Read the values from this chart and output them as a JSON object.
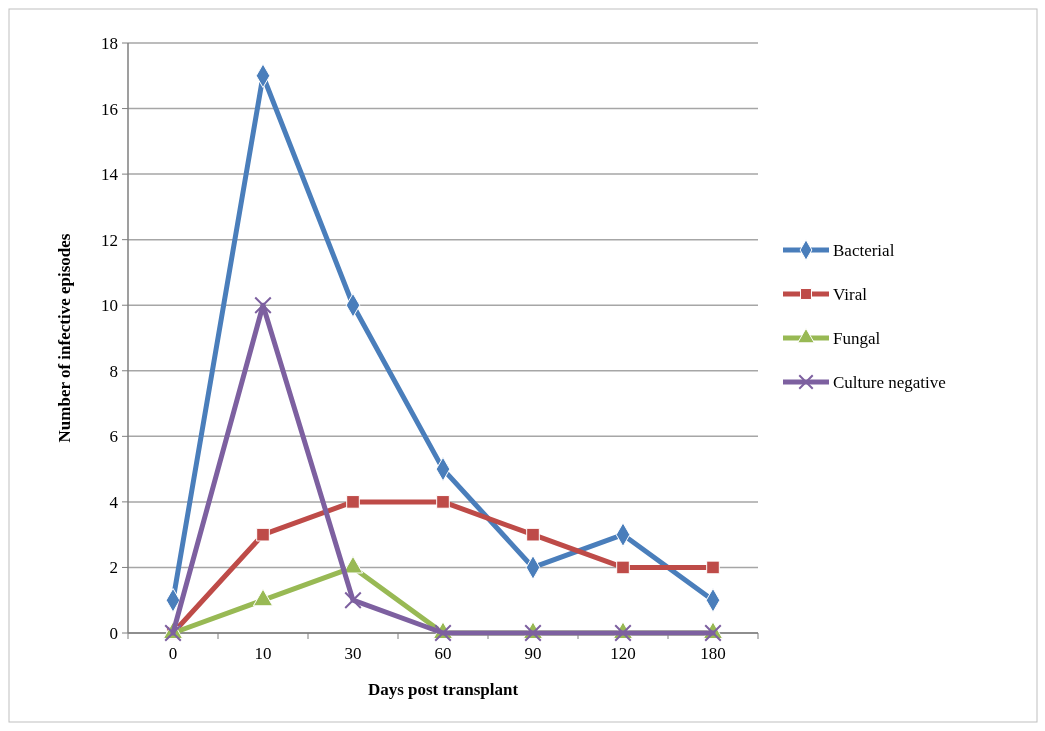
{
  "chart_data": {
    "type": "line",
    "xlabel": "Days post transplant",
    "ylabel": "Number of infective episodes",
    "categories": [
      "0",
      "10",
      "30",
      "60",
      "90",
      "120",
      "180"
    ],
    "series": [
      {
        "name": "Bacterial",
        "color": "#4a7ebb",
        "marker": "diamond",
        "values": [
          1,
          17,
          10,
          5,
          2,
          3,
          1
        ]
      },
      {
        "name": "Viral",
        "color": "#be4b48",
        "marker": "square",
        "values": [
          0,
          3,
          4,
          4,
          3,
          2,
          2
        ]
      },
      {
        "name": "Fungal",
        "color": "#98b954",
        "marker": "triangle",
        "values": [
          0,
          1,
          2,
          0,
          0,
          0,
          0
        ]
      },
      {
        "name": "Culture negative",
        "color": "#7d60a0",
        "marker": "cross",
        "values": [
          0,
          10,
          1,
          0,
          0,
          0,
          0
        ]
      }
    ],
    "ylim": [
      0,
      18
    ],
    "yticks": [
      0,
      2,
      4,
      6,
      8,
      10,
      12,
      14,
      16,
      18
    ],
    "grid": "y",
    "legend": "right"
  }
}
